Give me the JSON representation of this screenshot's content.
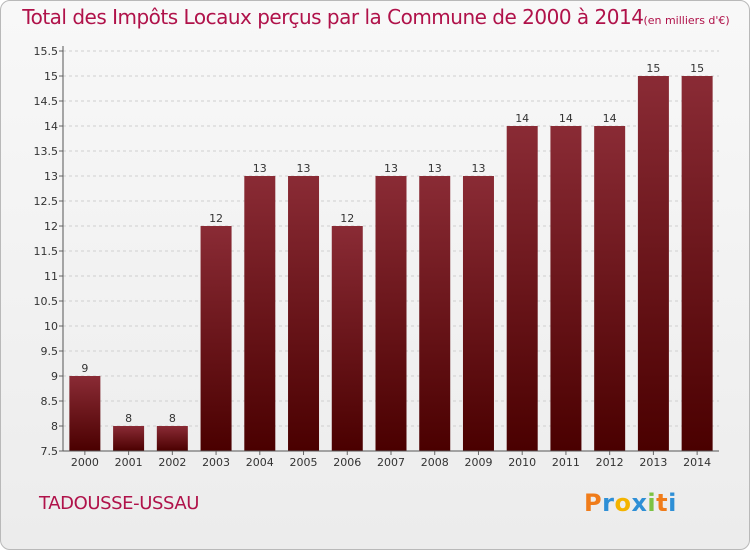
{
  "chart_data": {
    "type": "bar",
    "title": "Total des Impôts Locaux perçus par la Commune de 2000 à 2014",
    "unit": "(en milliers d'€)",
    "categories": [
      "2000",
      "2001",
      "2002",
      "2003",
      "2004",
      "2005",
      "2006",
      "2007",
      "2008",
      "2009",
      "2010",
      "2011",
      "2012",
      "2013",
      "2014"
    ],
    "values": [
      9,
      8,
      8,
      12,
      13,
      13,
      12,
      13,
      13,
      13,
      14,
      14,
      14,
      15,
      15
    ],
    "data_labels": [
      "9",
      "8",
      "8",
      "12",
      "13",
      "13",
      "12",
      "13",
      "13",
      "13",
      "14",
      "14",
      "14",
      "15",
      "15"
    ],
    "ylim": [
      7.5,
      15.5
    ],
    "yticks": [
      7.5,
      8,
      8.5,
      9,
      9.5,
      10,
      10.5,
      11,
      11.5,
      12,
      12.5,
      13,
      13.5,
      14,
      14.5,
      15,
      15.5
    ],
    "ytick_labels": [
      "7.5",
      "8",
      "8.5",
      "9",
      "9.5",
      "10",
      "10.5",
      "11",
      "11.5",
      "12",
      "12.5",
      "13",
      "13.5",
      "14",
      "14.5",
      "15",
      "15.5"
    ],
    "grid": true,
    "bar_color_top": "#8a2b35",
    "bar_color_bottom": "#4a0000"
  },
  "commune": "TADOUSSE-USSAU",
  "logo": {
    "letters": [
      "P",
      "r",
      "o",
      "x",
      "i",
      "t",
      "i"
    ],
    "colors": [
      "#f07c1a",
      "#2e8fd6",
      "#f4b400",
      "#2e8fd6",
      "#7cc242",
      "#f07c1a",
      "#2e8fd6"
    ]
  }
}
